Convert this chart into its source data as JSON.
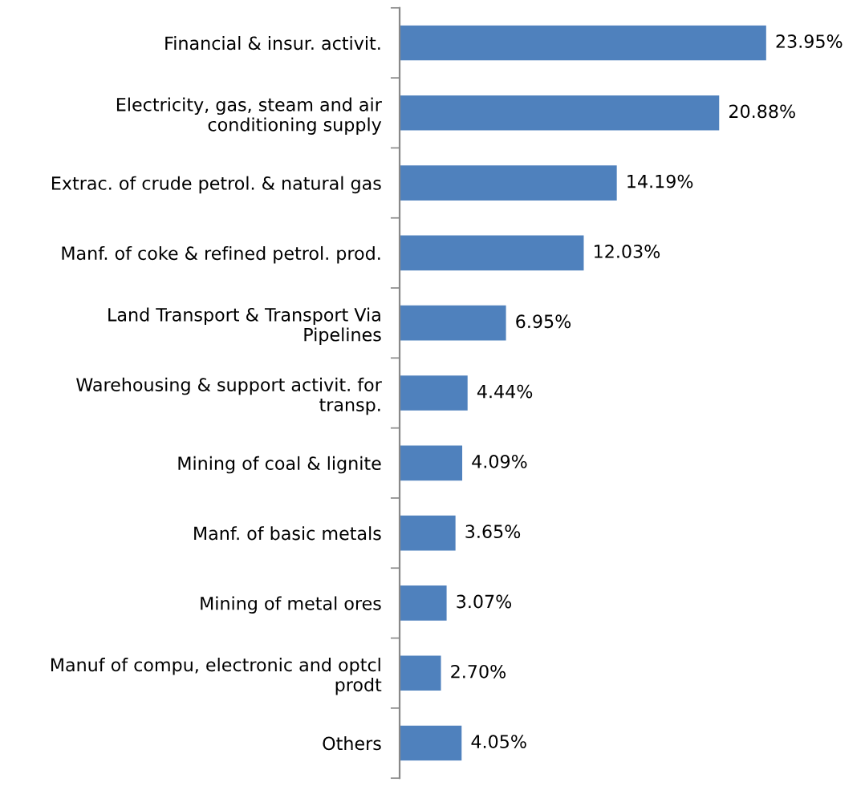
{
  "chart_data": {
    "type": "bar",
    "orientation": "horizontal",
    "color": "#4f81bd",
    "categories": [
      "Financial & insur. activit.",
      "Electricity, gas, steam and air conditioning supply",
      "Extrac. of crude petrol. & natural gas",
      "Manf. of coke & refined petrol. prod.",
      "Land Transport & Transport Via Pipelines",
      "Warehousing & support activit. for transp.",
      "Mining of coal & lignite",
      "Manf. of basic metals",
      "Mining of metal ores",
      "Manuf of compu, electronic and optcl prodt",
      "Others"
    ],
    "values": [
      23.95,
      20.88,
      14.19,
      12.03,
      6.95,
      4.44,
      4.09,
      3.65,
      3.07,
      2.7,
      4.05
    ],
    "value_labels": [
      "23.95%",
      "20.88%",
      "14.19%",
      "12.03%",
      "6.95%",
      "4.44%",
      "4.09%",
      "3.65%",
      "3.07%",
      "2.70%",
      "4.05%"
    ]
  }
}
